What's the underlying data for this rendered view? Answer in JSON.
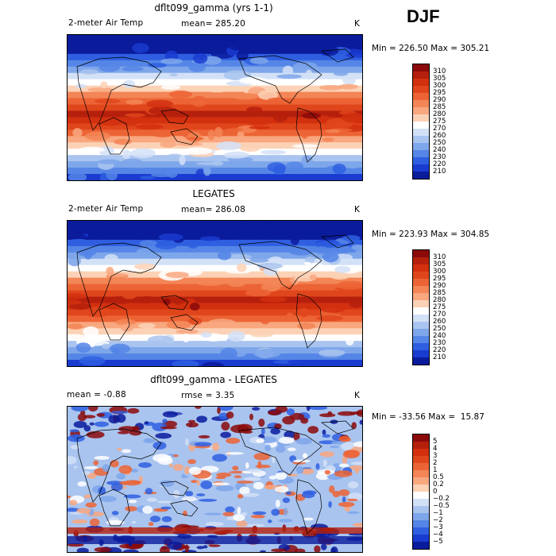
{
  "season": "DJF",
  "panels": [
    {
      "title": "dflt099_gamma (yrs 1-1)",
      "variable": "2-meter Air Temp",
      "mean_text": "mean= 285.20",
      "units": "K",
      "minmax": "Min = 226.50 Max = 305.21",
      "kind": "temp",
      "seed": 1
    },
    {
      "title": "LEGATES",
      "variable": "2-meter Air Temp",
      "mean_text": "mean= 286.08",
      "units": "K",
      "minmax": "Min = 223.93 Max = 304.85",
      "kind": "temp",
      "seed": 2
    },
    {
      "title": "dflt099_gamma - LEGATES",
      "variable": "mean =  -0.88",
      "mean_text": "rmse =   3.35",
      "units": "K",
      "minmax": "Min = -33.56 Max =  15.87",
      "kind": "diff",
      "seed": 3
    }
  ],
  "legends": {
    "temp": {
      "labels": [
        "310",
        "305",
        "300",
        "295",
        "290",
        "285",
        "280",
        "275",
        "270",
        "260",
        "250",
        "240",
        "230",
        "220",
        "210"
      ],
      "colors": [
        "#8b0a0a",
        "#b5200d",
        "#d2300f",
        "#e0461c",
        "#ec6435",
        "#f38556",
        "#f8a77f",
        "#fcd2b6",
        "#ffffff",
        "#d3e1f7",
        "#a9c4ef",
        "#7ea6ea",
        "#5585e6",
        "#2f5fe0",
        "#1a3bd0",
        "#0a1b9c"
      ]
    },
    "diff": {
      "labels": [
        "5",
        "4",
        "3",
        "2",
        "1",
        "0.5",
        "0.2",
        "0",
        "−0.2",
        "−0.5",
        "−1",
        "−2",
        "−3",
        "−4",
        "−5"
      ],
      "colors": [
        "#8b0a0a",
        "#b5200d",
        "#d2300f",
        "#e0461c",
        "#ec6435",
        "#f38556",
        "#f8a77f",
        "#fcd2b6",
        "#ffffff",
        "#d3e1f7",
        "#a9c4ef",
        "#7ea6ea",
        "#5585e6",
        "#2f5fe0",
        "#1a3bd0",
        "#0a1b9c"
      ]
    }
  }
}
